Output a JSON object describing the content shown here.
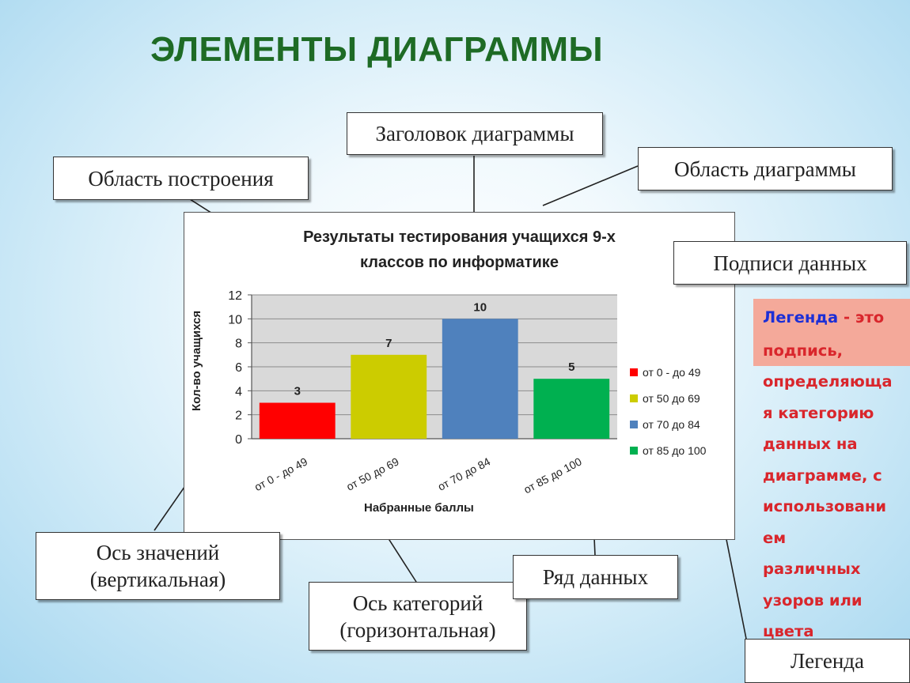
{
  "title": "ЭЛЕМЕНТЫ ДИАГРАММЫ",
  "callouts": {
    "chart_title": "Заголовок диаграммы",
    "plot_area": "Область построения",
    "chart_area": "Область диаграммы",
    "data_labels": "Подписи данных",
    "value_axis_line1": "Ось значений",
    "value_axis_line2": "(вертикальная)",
    "category_axis_line1": "Ось категорий",
    "category_axis_line2": "(горизонтальная)",
    "data_series": "Ряд данных",
    "legend": "Легенда"
  },
  "legend_note": {
    "term": "Легенда",
    "dash": " - ",
    "lines": [
      "это",
      "подпись,",
      "определяюща",
      "я категорию",
      "данных на",
      "диаграмме, с",
      "использовани",
      "ем",
      "различных",
      "узоров или",
      "цвета"
    ]
  },
  "colors": {
    "title": "#1e6b25",
    "note_term": "#1c2fd6",
    "note_text": "#d9262c",
    "note_bg": "#f4a99a",
    "plot_bg": "#d9d9d9"
  },
  "chart_data": {
    "type": "bar",
    "title": "Результаты тестирования учащихся 9-х классов по информатике",
    "title_lines": [
      "Результаты тестирования учащихся 9-х",
      "классов по информатике"
    ],
    "xlabel": "Набранные баллы",
    "ylabel": "Кол-во учащихся",
    "categories": [
      "от 0 - до 49",
      "от 50 до 69",
      "от 70 до 84",
      "от 85 до 100"
    ],
    "values": [
      3,
      7,
      10,
      5
    ],
    "colors": [
      "#ff0000",
      "#cccc00",
      "#4f81bd",
      "#00b050"
    ],
    "ylim": [
      0,
      12
    ],
    "yticks": [
      0,
      2,
      4,
      6,
      8,
      10,
      12
    ],
    "legend": [
      "от 0 - до 49",
      "от 50 до 69",
      "от 70 до 84",
      "от 85 до 100"
    ],
    "legend_position": "right",
    "grid": true,
    "data_labels": true
  }
}
